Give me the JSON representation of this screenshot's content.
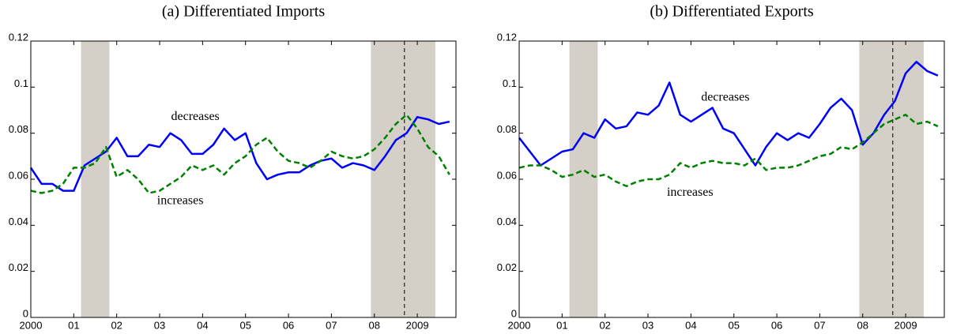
{
  "chart_data": [
    {
      "type": "line",
      "title": "(a) Differentiated Imports",
      "x": [
        2000,
        2000.25,
        2000.5,
        2000.75,
        2001,
        2001.25,
        2001.5,
        2001.75,
        2002,
        2002.25,
        2002.5,
        2002.75,
        2003,
        2003.25,
        2003.5,
        2003.75,
        2004,
        2004.25,
        2004.5,
        2004.75,
        2005,
        2005.25,
        2005.5,
        2005.75,
        2006,
        2006.25,
        2006.5,
        2006.75,
        2007,
        2007.25,
        2007.5,
        2007.75,
        2008,
        2008.25,
        2008.5,
        2008.75,
        2009,
        2009.25,
        2009.5,
        2009.75
      ],
      "series": [
        {
          "color": "#0000ff",
          "dashed": false,
          "values": [
            0.065,
            0.058,
            0.058,
            0.055,
            0.055,
            0.066,
            0.069,
            0.072,
            0.078,
            0.07,
            0.07,
            0.075,
            0.074,
            0.08,
            0.077,
            0.071,
            0.071,
            0.075,
            0.082,
            0.077,
            0.08,
            0.067,
            0.06,
            0.062,
            0.063,
            0.063,
            0.066,
            0.068,
            0.069,
            0.065,
            0.067,
            0.066,
            0.064,
            0.07,
            0.077,
            0.08,
            0.087,
            0.086,
            0.084,
            0.085
          ]
        },
        {
          "color": "#008000",
          "dashed": true,
          "values": [
            0.055,
            0.054,
            0.055,
            0.058,
            0.065,
            0.065,
            0.067,
            0.074,
            0.061,
            0.064,
            0.06,
            0.054,
            0.055,
            0.058,
            0.061,
            0.066,
            0.064,
            0.066,
            0.062,
            0.067,
            0.07,
            0.075,
            0.078,
            0.072,
            0.068,
            0.067,
            0.065,
            0.068,
            0.072,
            0.07,
            0.069,
            0.07,
            0.073,
            0.078,
            0.084,
            0.088,
            0.082,
            0.074,
            0.07,
            0.062
          ]
        }
      ],
      "annotations": [
        {
          "text": "decreases",
          "x": 2003.83,
          "y": 0.087
        },
        {
          "text": "increases",
          "x": 2003.48,
          "y": 0.0505
        }
      ],
      "shaded_periods": [
        [
          2001.17,
          2001.83
        ],
        [
          2007.92,
          2009.42
        ]
      ],
      "vline": 2008.7,
      "xlim": [
        2000,
        2009.9
      ],
      "xticks": [
        2000,
        {
          "value": 2001,
          "label": "01"
        },
        {
          "value": 2002,
          "label": "02"
        },
        {
          "value": 2003,
          "label": "03"
        },
        {
          "value": 2004,
          "label": "04"
        },
        {
          "value": 2005,
          "label": "05"
        },
        {
          "value": 2006,
          "label": "06"
        },
        {
          "value": 2007,
          "label": "07"
        },
        {
          "value": 2008,
          "label": "08"
        },
        2009
      ],
      "ylim": [
        0,
        0.12
      ],
      "yticks": [
        0,
        0.02,
        0.04,
        0.06,
        0.08,
        0.1,
        0.12
      ]
    },
    {
      "type": "line",
      "title": "(b) Differentiated Exports",
      "x": [
        2000,
        2000.25,
        2000.5,
        2000.75,
        2001,
        2001.25,
        2001.5,
        2001.75,
        2002,
        2002.25,
        2002.5,
        2002.75,
        2003,
        2003.25,
        2003.5,
        2003.75,
        2004,
        2004.25,
        2004.5,
        2004.75,
        2005,
        2005.25,
        2005.5,
        2005.75,
        2006,
        2006.25,
        2006.5,
        2006.75,
        2007,
        2007.25,
        2007.5,
        2007.75,
        2008,
        2008.25,
        2008.5,
        2008.75,
        2009,
        2009.25,
        2009.5,
        2009.75
      ],
      "series": [
        {
          "color": "#0000ff",
          "dashed": false,
          "values": [
            0.078,
            0.072,
            0.066,
            0.069,
            0.072,
            0.073,
            0.08,
            0.078,
            0.086,
            0.082,
            0.083,
            0.089,
            0.088,
            0.092,
            0.102,
            0.088,
            0.085,
            0.088,
            0.091,
            0.082,
            0.08,
            0.073,
            0.066,
            0.074,
            0.08,
            0.077,
            0.08,
            0.078,
            0.084,
            0.091,
            0.095,
            0.09,
            0.075,
            0.08,
            0.088,
            0.094,
            0.106,
            0.111,
            0.107,
            0.105
          ]
        },
        {
          "color": "#008000",
          "dashed": true,
          "values": [
            0.065,
            0.066,
            0.066,
            0.064,
            0.061,
            0.062,
            0.064,
            0.061,
            0.062,
            0.059,
            0.057,
            0.059,
            0.06,
            0.06,
            0.062,
            0.067,
            0.065,
            0.067,
            0.068,
            0.067,
            0.067,
            0.066,
            0.069,
            0.064,
            0.065,
            0.065,
            0.066,
            0.068,
            0.07,
            0.071,
            0.074,
            0.073,
            0.076,
            0.08,
            0.084,
            0.086,
            0.088,
            0.084,
            0.085,
            0.083
          ]
        }
      ],
      "annotations": [
        {
          "text": "decreases",
          "x": 2004.8,
          "y": 0.0953
        },
        {
          "text": "increases",
          "x": 2003.98,
          "y": 0.054
        }
      ],
      "shaded_periods": [
        [
          2001.17,
          2001.83
        ],
        [
          2007.92,
          2009.42
        ]
      ],
      "vline": 2008.7,
      "xlim": [
        2000,
        2009.9
      ],
      "xticks": [
        2000,
        {
          "value": 2001,
          "label": "01"
        },
        {
          "value": 2002,
          "label": "02"
        },
        {
          "value": 2003,
          "label": "03"
        },
        {
          "value": 2004,
          "label": "04"
        },
        {
          "value": 2005,
          "label": "05"
        },
        {
          "value": 2006,
          "label": "06"
        },
        {
          "value": 2007,
          "label": "07"
        },
        {
          "value": 2008,
          "label": "08"
        },
        2009
      ],
      "ylim": [
        0,
        0.12
      ],
      "yticks": [
        0,
        0.02,
        0.04,
        0.06,
        0.08,
        0.1,
        0.12
      ]
    }
  ]
}
